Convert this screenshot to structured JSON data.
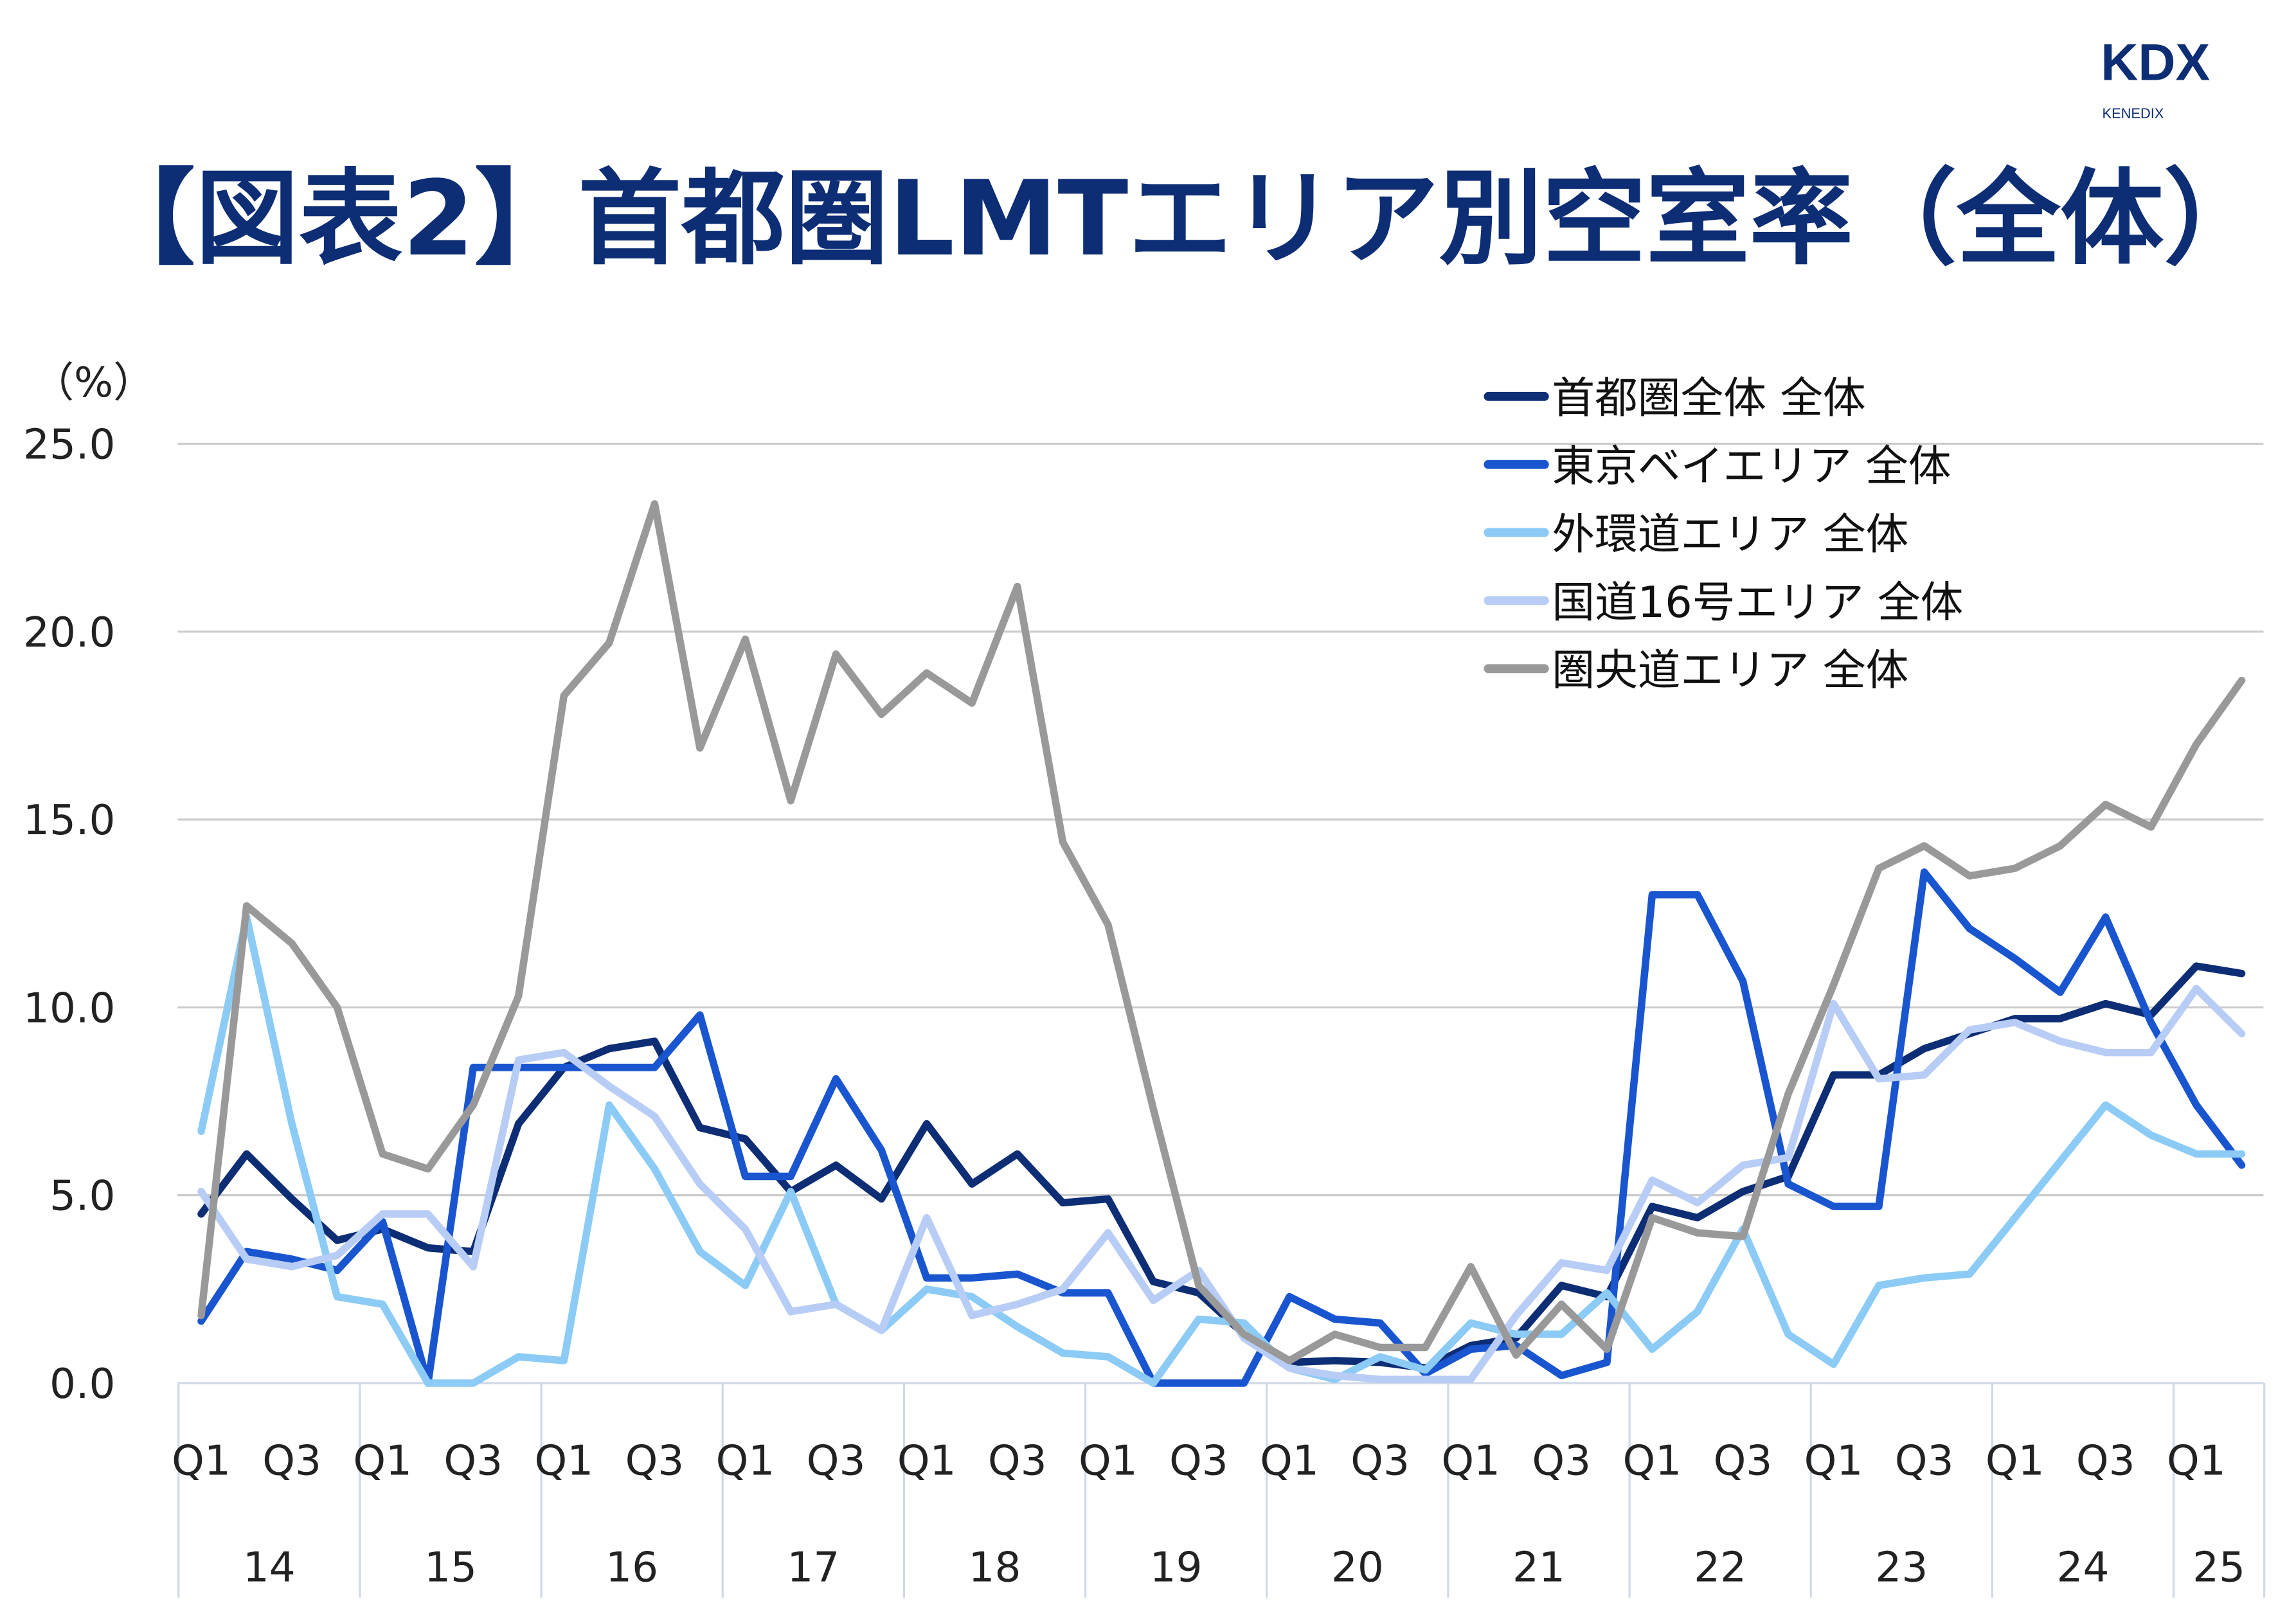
{
  "title": "【図表2】首都圏LMTエリア別空室率（全体）",
  "logo": {
    "main": "KDX",
    "sub": "KENEDIX"
  },
  "colors": {
    "title": "#0D2D75",
    "logo": "#0D2D75",
    "grid": "#CCCCCC"
  },
  "chart_data": {
    "type": "line",
    "ylabel": "（%）",
    "ylim": [
      0,
      25
    ],
    "yticks": [
      "0.0",
      "5.0",
      "10.0",
      "15.0",
      "20.0",
      "25.0"
    ],
    "grid": true,
    "legend_position": "top-right",
    "years": [
      "14",
      "15",
      "16",
      "17",
      "18",
      "19",
      "20",
      "21",
      "22",
      "23",
      "24",
      "25"
    ],
    "x": [
      "14Q1",
      "14Q2",
      "14Q3",
      "14Q4",
      "15Q1",
      "15Q2",
      "15Q3",
      "15Q4",
      "16Q1",
      "16Q2",
      "16Q3",
      "16Q4",
      "17Q1",
      "17Q2",
      "17Q3",
      "17Q4",
      "18Q1",
      "18Q2",
      "18Q3",
      "18Q4",
      "19Q1",
      "19Q2",
      "19Q3",
      "19Q4",
      "20Q1",
      "20Q2",
      "20Q3",
      "20Q4",
      "21Q1",
      "21Q2",
      "21Q3",
      "21Q4",
      "22Q1",
      "22Q2",
      "22Q3",
      "22Q4",
      "23Q1",
      "23Q2",
      "23Q3",
      "23Q4",
      "24Q1",
      "24Q2",
      "24Q3",
      "24Q4",
      "25Q1",
      "25Q2"
    ],
    "quarter_labels": [
      "Q1",
      "",
      "Q3",
      "",
      "Q1",
      "",
      "Q3",
      "",
      "Q1",
      "",
      "Q3",
      "",
      "Q1",
      "",
      "Q3",
      "",
      "Q1",
      "",
      "Q3",
      "",
      "Q1",
      "",
      "Q3",
      "",
      "Q1",
      "",
      "Q3",
      "",
      "Q1",
      "",
      "Q3",
      "",
      "Q1",
      "",
      "Q3",
      "",
      "Q1",
      "",
      "Q3",
      "",
      "Q1",
      "",
      "Q3",
      "",
      "Q1",
      ""
    ],
    "series": [
      {
        "name": "首都圏全体 全体",
        "color": "#0D2D75",
        "values": [
          4.5,
          6.1,
          4.9,
          3.8,
          4.1,
          3.6,
          3.5,
          6.9,
          8.4,
          8.9,
          9.1,
          6.8,
          6.5,
          5.1,
          5.8,
          4.9,
          6.9,
          5.3,
          6.1,
          4.8,
          4.9,
          2.7,
          2.4,
          1.3,
          0.55,
          0.6,
          0.55,
          0.4,
          1.0,
          1.2,
          2.6,
          2.3,
          4.7,
          4.4,
          5.1,
          5.5,
          8.2,
          8.2,
          8.9,
          9.3,
          9.7,
          9.7,
          10.1,
          9.8,
          11.1,
          10.9
        ]
      },
      {
        "name": "東京ベイエリア 全体",
        "color": "#1A55D0",
        "values": [
          1.65,
          3.5,
          3.3,
          3.0,
          4.3,
          0.0,
          8.4,
          8.4,
          8.4,
          8.4,
          8.4,
          9.8,
          5.5,
          5.5,
          8.1,
          6.2,
          2.8,
          2.8,
          2.9,
          2.4,
          2.4,
          0.0,
          0.0,
          0.0,
          2.3,
          1.7,
          1.6,
          0.25,
          0.9,
          1.0,
          0.2,
          0.55,
          13.0,
          13.0,
          10.7,
          5.3,
          4.7,
          4.7,
          13.6,
          12.1,
          11.3,
          10.4,
          12.4,
          9.6,
          7.4,
          5.8
        ]
      },
      {
        "name": "外環道エリア 全体",
        "color": "#8BCBF5",
        "values": [
          6.7,
          12.4,
          6.9,
          2.3,
          2.1,
          0.0,
          0.0,
          0.7,
          0.6,
          7.4,
          5.7,
          3.5,
          2.6,
          5.1,
          2.1,
          1.4,
          2.5,
          2.3,
          1.5,
          0.8,
          0.7,
          0.0,
          1.7,
          1.6,
          0.4,
          0.1,
          0.7,
          0.35,
          1.6,
          1.3,
          1.3,
          2.4,
          0.9,
          1.9,
          4.1,
          1.3,
          0.5,
          2.6,
          2.8,
          2.9,
          4.4,
          5.9,
          7.4,
          6.6,
          6.1,
          6.1
        ]
      },
      {
        "name": "国道16号エリア 全体",
        "color": "#B8CDF5",
        "values": [
          5.1,
          3.3,
          3.1,
          3.4,
          4.5,
          4.5,
          3.1,
          8.6,
          8.8,
          7.9,
          7.1,
          5.3,
          4.1,
          1.9,
          2.1,
          1.4,
          4.4,
          1.8,
          2.1,
          2.5,
          4.0,
          2.2,
          3.0,
          1.2,
          0.4,
          0.2,
          0.1,
          0.1,
          0.1,
          1.8,
          3.2,
          3.0,
          5.4,
          4.8,
          5.8,
          6.0,
          10.1,
          8.1,
          8.2,
          9.4,
          9.6,
          9.1,
          8.8,
          8.8,
          10.5,
          9.3
        ]
      },
      {
        "name": "圏央道エリア 全体",
        "color": "#999999",
        "values": [
          1.8,
          12.7,
          11.7,
          10.0,
          6.1,
          5.7,
          7.4,
          10.3,
          18.3,
          19.7,
          23.4,
          16.9,
          19.8,
          15.5,
          19.4,
          17.8,
          18.9,
          18.1,
          21.2,
          14.4,
          12.2,
          7.3,
          2.6,
          1.3,
          0.6,
          1.3,
          0.95,
          0.95,
          3.1,
          0.75,
          2.1,
          0.9,
          4.4,
          4.0,
          3.9,
          7.7,
          10.6,
          13.7,
          14.3,
          13.5,
          13.7,
          14.3,
          15.4,
          14.8,
          17.0,
          18.7
        ]
      }
    ]
  }
}
